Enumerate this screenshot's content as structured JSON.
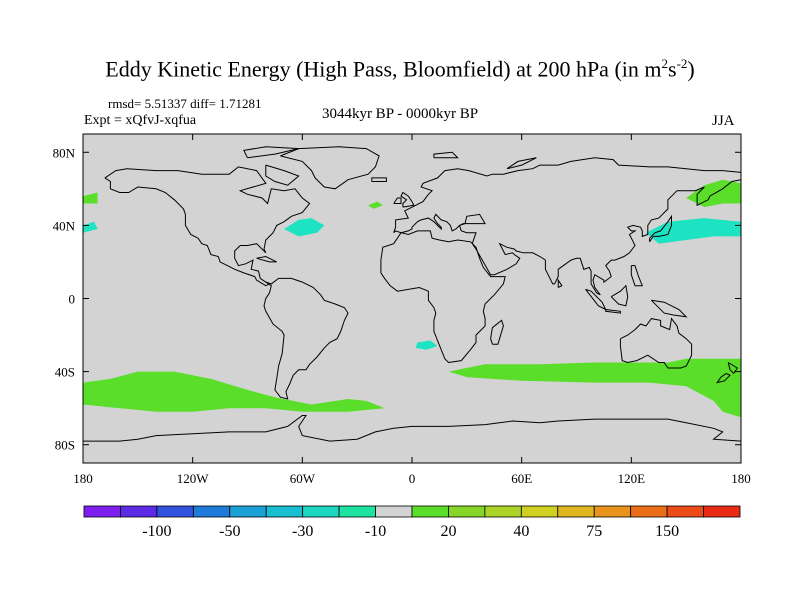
{
  "title": {
    "main": "Eddy Kinetic Energy (High Pass, Bloomfield) at 200 hPa (in m",
    "sup1": "2",
    "s": "s",
    "sup2": "-2",
    "close": ")"
  },
  "stats": "rmsd= 5.51337 diff= 1.71281",
  "expt": "Expt = xQfvJ-xqfua",
  "period": "3044kyr BP - 0000kyr BP",
  "season": "JJA",
  "map": {
    "lat_range": [
      -90,
      90
    ],
    "lon_range": [
      -180,
      180
    ],
    "ocean_fill": "#d3d3d3",
    "coast_color": "#000000",
    "lat_labels": [
      "80N",
      "40N",
      "0",
      "40S",
      "80S"
    ],
    "lat_values": [
      80,
      40,
      0,
      -40,
      -80
    ],
    "lon_labels": [
      "180",
      "120W",
      "60W",
      "0",
      "60E",
      "120E",
      "180"
    ],
    "lon_values": [
      -180,
      -120,
      -60,
      0,
      60,
      120,
      180
    ],
    "anomaly_regions": [
      {
        "name": "southern-pacific-band",
        "level": "20",
        "color": "#5ade2a",
        "lonlat": [
          [
            -180,
            -46
          ],
          [
            -165,
            -44
          ],
          [
            -150,
            -40
          ],
          [
            -130,
            -40
          ],
          [
            -110,
            -44
          ],
          [
            -90,
            -50
          ],
          [
            -75,
            -54
          ],
          [
            -65,
            -56
          ],
          [
            -55,
            -58
          ],
          [
            -35,
            -55
          ],
          [
            -25,
            -56
          ],
          [
            -15,
            -60
          ],
          [
            -35,
            -62
          ],
          [
            -60,
            -62
          ],
          [
            -80,
            -60
          ],
          [
            -100,
            -60
          ],
          [
            -120,
            -62
          ],
          [
            -140,
            -62
          ],
          [
            -160,
            -60
          ],
          [
            -180,
            -58
          ]
        ]
      },
      {
        "name": "southern-indian-band",
        "level": "20",
        "color": "#5ade2a",
        "lonlat": [
          [
            20,
            -40
          ],
          [
            40,
            -36
          ],
          [
            70,
            -36
          ],
          [
            100,
            -35
          ],
          [
            115,
            -35
          ],
          [
            140,
            -35
          ],
          [
            150,
            -33
          ],
          [
            165,
            -33
          ],
          [
            180,
            -33
          ],
          [
            180,
            -65
          ],
          [
            170,
            -62
          ],
          [
            165,
            -56
          ],
          [
            150,
            -48
          ],
          [
            130,
            -46
          ],
          [
            100,
            -46
          ],
          [
            60,
            -45
          ],
          [
            30,
            -43
          ]
        ]
      },
      {
        "name": "north-pacific-green",
        "level": "20",
        "color": "#5ade2a",
        "lonlat": [
          [
            150,
            55
          ],
          [
            160,
            62
          ],
          [
            170,
            65
          ],
          [
            180,
            63
          ],
          [
            180,
            52
          ],
          [
            170,
            52
          ],
          [
            160,
            50
          ]
        ]
      },
      {
        "name": "north-pacific-cyan",
        "level": "-10",
        "color": "#1de3c2",
        "lonlat": [
          [
            128,
            36
          ],
          [
            140,
            42
          ],
          [
            160,
            44
          ],
          [
            180,
            42
          ],
          [
            180,
            34
          ],
          [
            165,
            34
          ],
          [
            150,
            32
          ],
          [
            135,
            30
          ]
        ]
      },
      {
        "name": "north-atlantic-cyan",
        "level": "-10",
        "color": "#1de3c2",
        "lonlat": [
          [
            -70,
            38
          ],
          [
            -62,
            43
          ],
          [
            -55,
            44
          ],
          [
            -48,
            40
          ],
          [
            -52,
            36
          ],
          [
            -62,
            34
          ]
        ]
      },
      {
        "name": "alaska-green",
        "level": "20",
        "color": "#5ade2a",
        "lonlat": [
          [
            -180,
            56
          ],
          [
            -172,
            58
          ],
          [
            -172,
            52
          ],
          [
            -180,
            52
          ]
        ]
      },
      {
        "name": "central-pacific-cyan",
        "level": "-10",
        "color": "#1de3c2",
        "lonlat": [
          [
            -180,
            40
          ],
          [
            -174,
            42
          ],
          [
            -172,
            38
          ],
          [
            -180,
            36
          ]
        ]
      },
      {
        "name": "mid-atlantic-green",
        "level": "20",
        "color": "#5ade2a",
        "lonlat": [
          [
            -24,
            51
          ],
          [
            -19,
            53
          ],
          [
            -16,
            51
          ],
          [
            -21,
            49
          ]
        ]
      },
      {
        "name": "south-atlantic-cyan",
        "level": "-10",
        "color": "#1de3c2",
        "lonlat": [
          [
            3,
            -24
          ],
          [
            10,
            -23
          ],
          [
            14,
            -26
          ],
          [
            8,
            -28
          ],
          [
            2,
            -27
          ]
        ]
      },
      {
        "name": "east-australia-green",
        "level": "20",
        "color": "#5ade2a",
        "lonlat": [
          [
            138,
            -38
          ],
          [
            150,
            -36
          ],
          [
            150,
            -45
          ],
          [
            140,
            -43
          ]
        ]
      }
    ]
  },
  "colorbar": {
    "colors": [
      "#7f1fef",
      "#5b2be5",
      "#3153dd",
      "#1f7bd9",
      "#1ba1d5",
      "#18bfd0",
      "#1cd6c0",
      "#1de3a2",
      "#d3d3d3",
      "#5ade2a",
      "#86d627",
      "#abd325",
      "#d0d022",
      "#dfb81f",
      "#e8941c",
      "#ec6e19",
      "#ec4a17",
      "#e92a14"
    ],
    "labels": [
      "-100",
      "-50",
      "-30",
      "-10",
      "20",
      "40",
      "75",
      "150"
    ],
    "label_boundary_index": [
      2,
      4,
      6,
      8,
      10,
      12,
      14,
      16
    ]
  }
}
